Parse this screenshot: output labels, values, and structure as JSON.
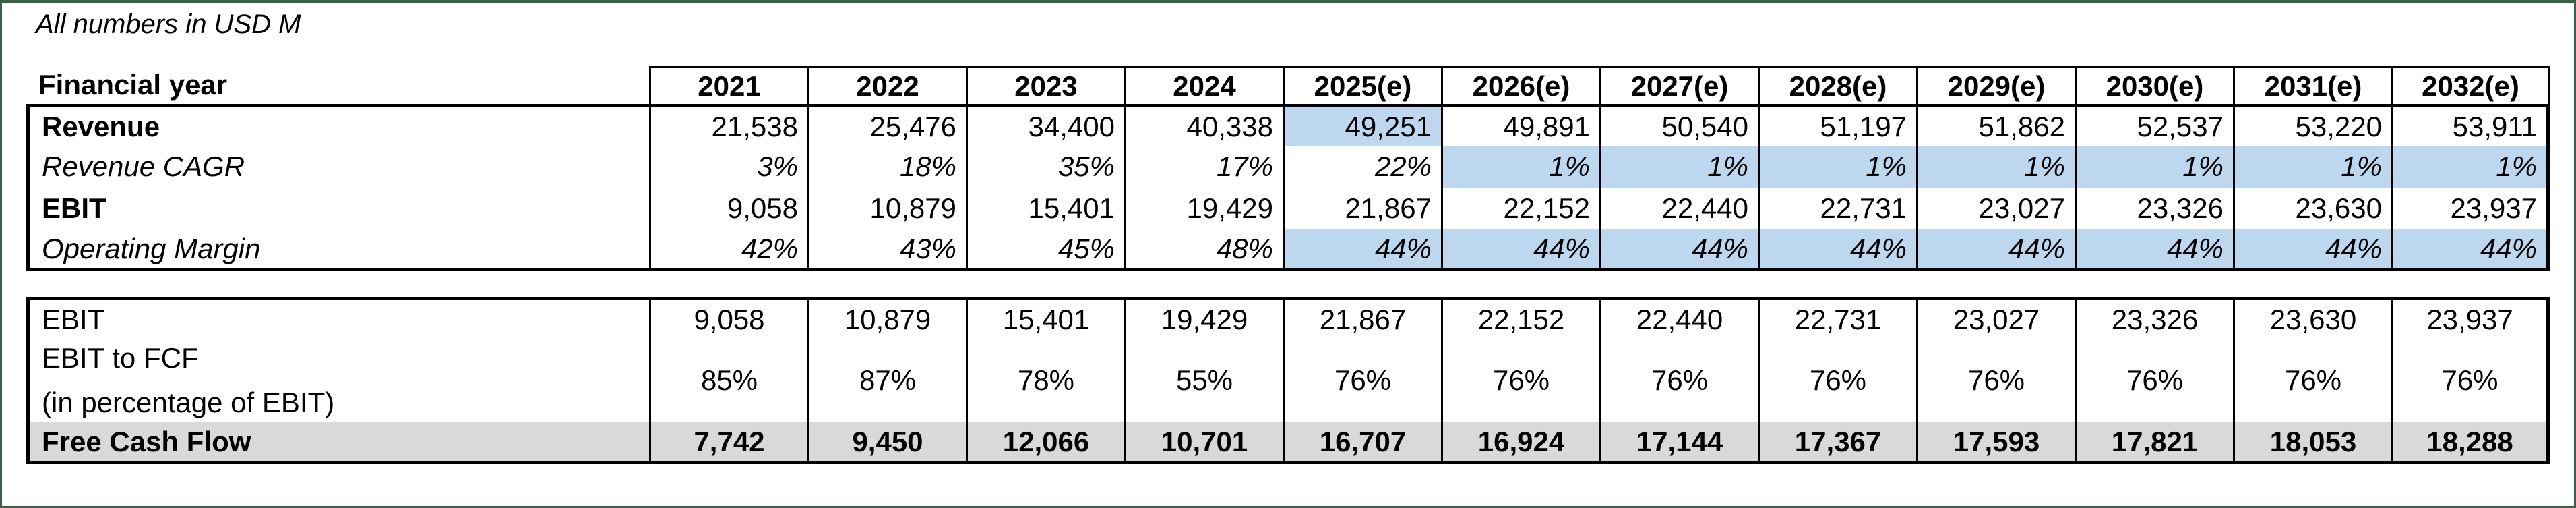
{
  "units_note": "All numbers in USD M",
  "colors": {
    "highlight_blue": "#BDD7EE",
    "total_row_gray": "#D9D9D9",
    "frame_green": "#3A6148",
    "grid_black": "#000000"
  },
  "table1": {
    "header_label": "Financial year",
    "years": [
      "2021",
      "2022",
      "2023",
      "2024",
      "2025(e)",
      "2026(e)",
      "2027(e)",
      "2028(e)",
      "2029(e)",
      "2030(e)",
      "2031(e)",
      "2032(e)"
    ],
    "rows": [
      {
        "label": "Revenue",
        "values": [
          "21,538",
          "25,476",
          "34,400",
          "40,338",
          "49,251",
          "49,891",
          "50,540",
          "51,197",
          "51,862",
          "52,537",
          "53,220",
          "53,911"
        ],
        "highlight": [
          0,
          0,
          0,
          0,
          1,
          0,
          0,
          0,
          0,
          0,
          0,
          0
        ]
      },
      {
        "label": "Revenue CAGR",
        "values": [
          "3%",
          "18%",
          "35%",
          "17%",
          "22%",
          "1%",
          "1%",
          "1%",
          "1%",
          "1%",
          "1%",
          "1%"
        ],
        "highlight": [
          0,
          0,
          0,
          0,
          0,
          1,
          1,
          1,
          1,
          1,
          1,
          1
        ]
      },
      {
        "label": "EBIT",
        "values": [
          "9,058",
          "10,879",
          "15,401",
          "19,429",
          "21,867",
          "22,152",
          "22,440",
          "22,731",
          "23,027",
          "23,326",
          "23,630",
          "23,937"
        ],
        "highlight": [
          0,
          0,
          0,
          0,
          0,
          0,
          0,
          0,
          0,
          0,
          0,
          0
        ]
      },
      {
        "label": "Operating Margin",
        "values": [
          "42%",
          "43%",
          "45%",
          "48%",
          "44%",
          "44%",
          "44%",
          "44%",
          "44%",
          "44%",
          "44%",
          "44%"
        ],
        "highlight": [
          0,
          0,
          0,
          0,
          1,
          1,
          1,
          1,
          1,
          1,
          1,
          1
        ]
      }
    ]
  },
  "table2": {
    "rows": [
      {
        "label": "EBIT",
        "values": [
          "9,058",
          "10,879",
          "15,401",
          "19,429",
          "21,867",
          "22,152",
          "22,440",
          "22,731",
          "23,027",
          "23,326",
          "23,630",
          "23,937"
        ]
      },
      {
        "label_line1": "EBIT to FCF",
        "label_line2": "(in percentage of EBIT)",
        "values": [
          "85%",
          "87%",
          "78%",
          "55%",
          "76%",
          "76%",
          "76%",
          "76%",
          "76%",
          "76%",
          "76%",
          "76%"
        ]
      },
      {
        "label": "Free Cash Flow",
        "values": [
          "7,742",
          "9,450",
          "12,066",
          "10,701",
          "16,707",
          "16,924",
          "17,144",
          "17,367",
          "17,593",
          "17,821",
          "18,053",
          "18,288"
        ]
      }
    ]
  },
  "chart_data": {
    "type": "table",
    "title": "All numbers in USD M",
    "columns": [
      "2021",
      "2022",
      "2023",
      "2024",
      "2025(e)",
      "2026(e)",
      "2027(e)",
      "2028(e)",
      "2029(e)",
      "2030(e)",
      "2031(e)",
      "2032(e)"
    ],
    "series": [
      {
        "name": "Revenue",
        "values": [
          21538,
          25476,
          34400,
          40338,
          49251,
          49891,
          50540,
          51197,
          51862,
          52537,
          53220,
          53911
        ]
      },
      {
        "name": "Revenue CAGR %",
        "values": [
          3,
          18,
          35,
          17,
          22,
          1,
          1,
          1,
          1,
          1,
          1,
          1
        ]
      },
      {
        "name": "EBIT",
        "values": [
          9058,
          10879,
          15401,
          19429,
          21867,
          22152,
          22440,
          22731,
          23027,
          23326,
          23630,
          23937
        ]
      },
      {
        "name": "Operating Margin %",
        "values": [
          42,
          43,
          45,
          48,
          44,
          44,
          44,
          44,
          44,
          44,
          44,
          44
        ]
      },
      {
        "name": "EBIT to FCF (in percentage of EBIT) %",
        "values": [
          85,
          87,
          78,
          55,
          76,
          76,
          76,
          76,
          76,
          76,
          76,
          76
        ]
      },
      {
        "name": "Free Cash Flow",
        "values": [
          7742,
          9450,
          12066,
          10701,
          16707,
          16924,
          17144,
          17367,
          17593,
          17821,
          18053,
          18288
        ]
      }
    ]
  }
}
